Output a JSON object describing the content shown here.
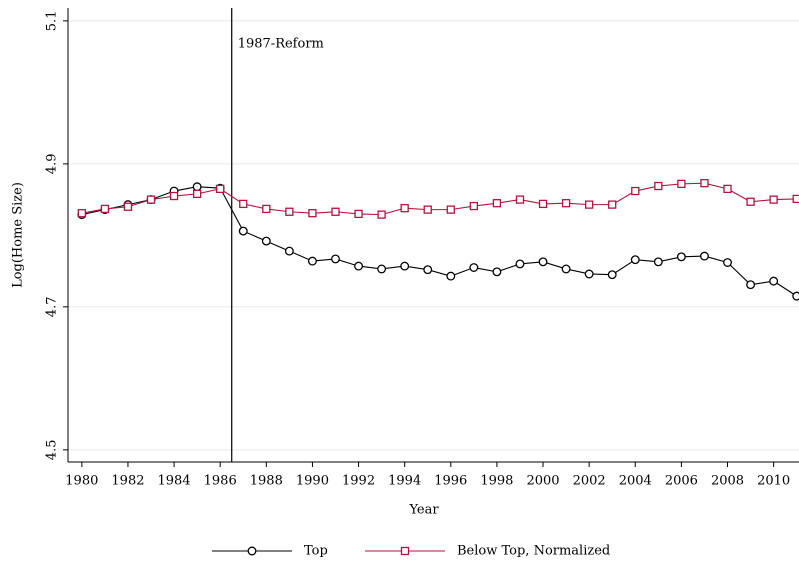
{
  "chart_data": {
    "type": "line",
    "xlabel": "Year",
    "ylabel": "Log(Home Size)",
    "x": [
      1980,
      1981,
      1982,
      1983,
      1984,
      1985,
      1986,
      1987,
      1988,
      1989,
      1990,
      1991,
      1992,
      1993,
      1994,
      1995,
      1996,
      1997,
      1998,
      1999,
      2000,
      2001,
      2002,
      2003,
      2004,
      2005,
      2006,
      2007,
      2008,
      2009,
      2010,
      2011
    ],
    "series": [
      {
        "name": "Top",
        "color": "#000000",
        "marker": "circle",
        "values": [
          4.829,
          4.836,
          4.843,
          4.85,
          4.862,
          4.868,
          4.866,
          4.806,
          4.792,
          4.778,
          4.764,
          4.767,
          4.757,
          4.753,
          4.757,
          4.752,
          4.743,
          4.755,
          4.749,
          4.76,
          4.763,
          4.753,
          4.746,
          4.745,
          4.766,
          4.763,
          4.77,
          4.771,
          4.762,
          4.731,
          4.736,
          4.715
        ]
      },
      {
        "name": "Below Top, Normalized",
        "color": "#b5123f",
        "marker": "square",
        "values": [
          4.831,
          4.837,
          4.84,
          4.85,
          4.855,
          4.858,
          4.865,
          4.844,
          4.837,
          4.833,
          4.831,
          4.833,
          4.83,
          4.829,
          4.838,
          4.836,
          4.836,
          4.841,
          4.845,
          4.85,
          4.844,
          4.845,
          4.843,
          4.843,
          4.862,
          4.869,
          4.872,
          4.873,
          4.865,
          4.847,
          4.85,
          4.851
        ]
      }
    ],
    "reference_line": {
      "x": 1986.5,
      "label": "1987-Reform"
    },
    "xlim": [
      1979.4,
      2011.1
    ],
    "xticks": [
      1980,
      1982,
      1984,
      1986,
      1988,
      1990,
      1992,
      1994,
      1996,
      1998,
      2000,
      2002,
      2004,
      2006,
      2008,
      2010
    ],
    "ylim": [
      4.483,
      5.118
    ],
    "yticks": [
      4.5,
      4.7,
      4.9,
      5.1
    ],
    "grid": true,
    "legend": "bottom"
  }
}
